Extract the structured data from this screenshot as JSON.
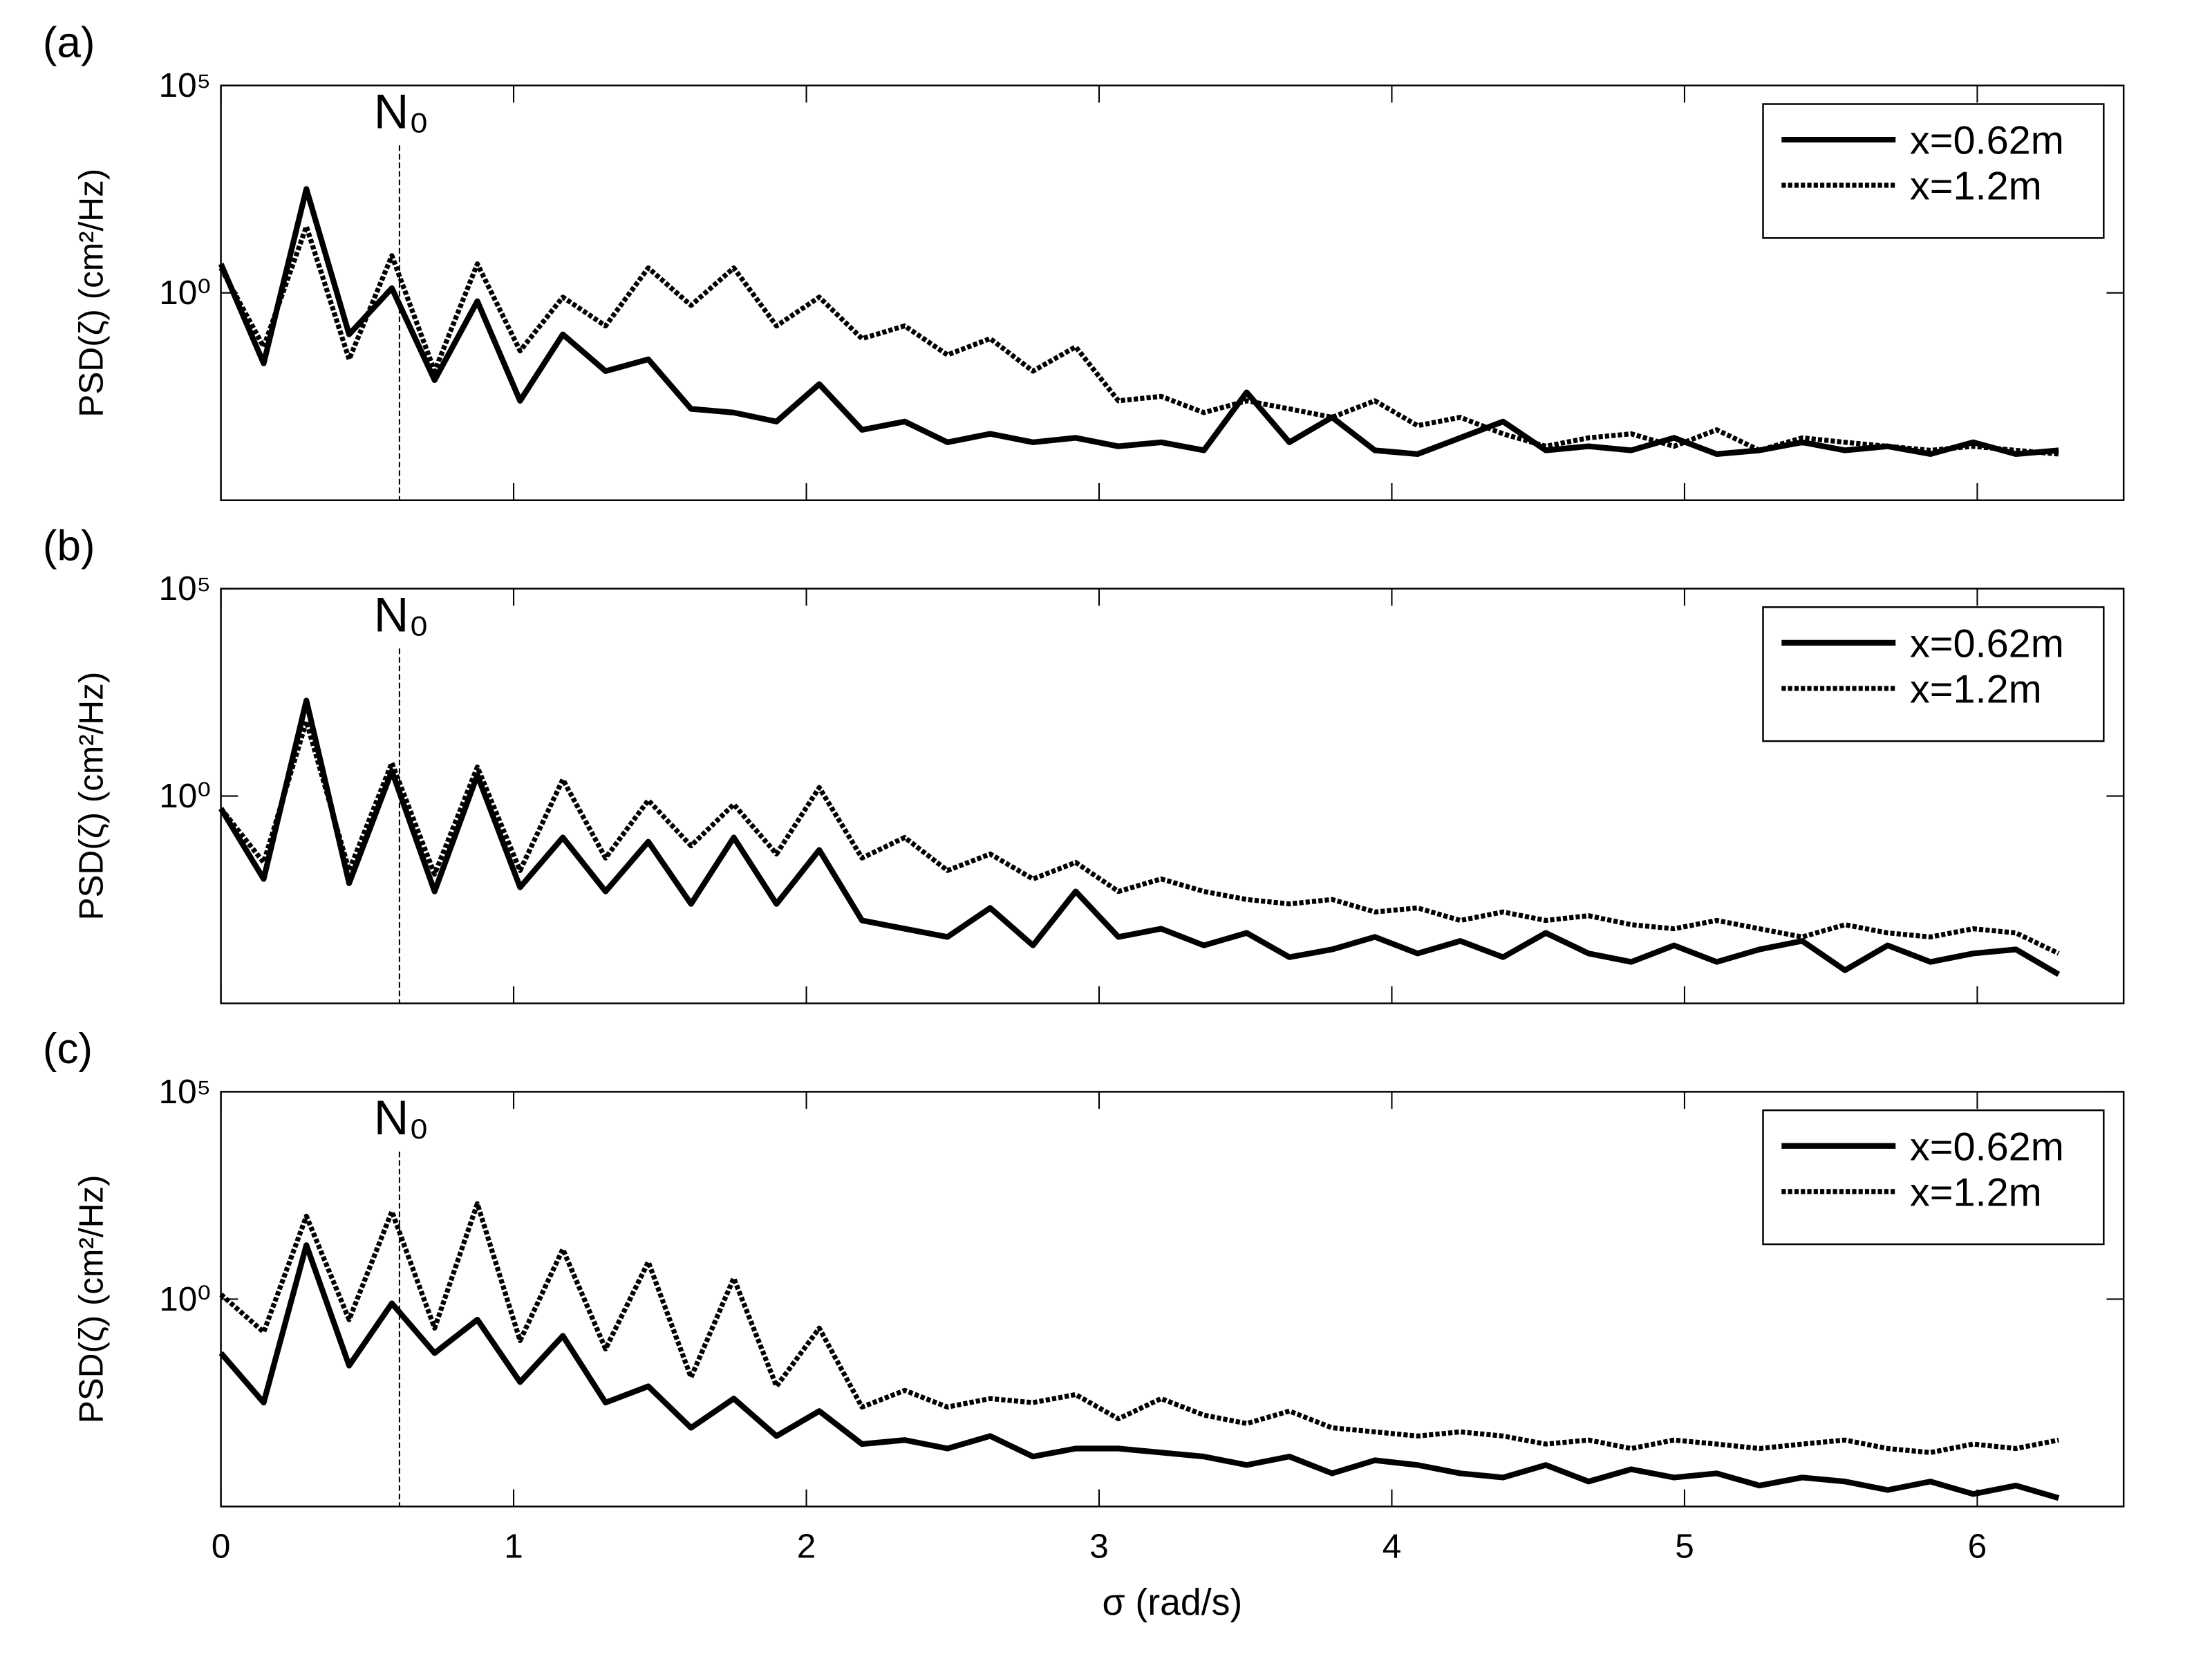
{
  "chart_data": [
    {
      "type": "line",
      "title": "(a)",
      "y_label": "PSD(ζ) (cm²/Hz)",
      "yscale": "log",
      "ylim": [
        1e-05,
        100000
      ],
      "yticks": [
        {
          "value": 1,
          "label": "10⁰"
        },
        {
          "value": 100000,
          "label": "10⁵"
        }
      ],
      "xlim": [
        0,
        6.5
      ],
      "annotation": {
        "text": "N₀",
        "x": 0.61
      },
      "legend": "upper right",
      "x": [
        0,
        0.146,
        0.292,
        0.438,
        0.584,
        0.73,
        0.876,
        1.022,
        1.168,
        1.314,
        1.46,
        1.606,
        1.752,
        1.898,
        2.044,
        2.19,
        2.336,
        2.482,
        2.628,
        2.774,
        2.92,
        3.066,
        3.212,
        3.358,
        3.504,
        3.65,
        3.796,
        3.942,
        4.088,
        4.234,
        4.38,
        4.526,
        4.672,
        4.818,
        4.964,
        5.11,
        5.256,
        5.402,
        5.548,
        5.694,
        5.84,
        5.986,
        6.132,
        6.278
      ],
      "series": [
        {
          "name": "x=0.62m",
          "color": "#000000",
          "line_style": "solid",
          "values": [
            5,
            0.02,
            320,
            0.1,
            1.3,
            0.0079,
            0.63,
            0.0025,
            0.1,
            0.013,
            0.025,
            0.0016,
            0.0013,
            0.00079,
            0.0063,
            0.0005,
            0.00079,
            0.00025,
            0.0004,
            0.00025,
            0.00032,
            0.0002,
            0.00025,
            0.00016,
            0.004,
            0.00025,
            0.001,
            0.00016,
            0.00013,
            0.00032,
            0.00079,
            0.00016,
            0.0002,
            0.00016,
            0.00032,
            0.00013,
            0.00016,
            0.00025,
            0.00016,
            0.0002,
            0.00013,
            0.00025,
            0.00013,
            0.00016
          ]
        },
        {
          "name": "x=1.2m",
          "color": "#000000",
          "line_style": "dotted",
          "values": [
            4,
            0.05,
            40,
            0.025,
            7.9,
            0.013,
            5,
            0.04,
            0.79,
            0.16,
            4,
            0.5,
            4,
            0.16,
            0.79,
            0.079,
            0.16,
            0.032,
            0.079,
            0.013,
            0.05,
            0.0025,
            0.0032,
            0.0013,
            0.0025,
            0.0016,
            0.001,
            0.0025,
            0.00063,
            0.001,
            0.0004,
            0.0002,
            0.00032,
            0.0004,
            0.0002,
            0.0005,
            0.00016,
            0.00032,
            0.00025,
            0.0002,
            0.00016,
            0.0002,
            0.00016,
            0.00013
          ]
        }
      ]
    },
    {
      "type": "line",
      "title": "(b)",
      "y_label": "PSD(ζ) (cm²/Hz)",
      "yscale": "log",
      "ylim": [
        1e-05,
        100000
      ],
      "yticks": [
        {
          "value": 1,
          "label": "10⁰"
        },
        {
          "value": 100000,
          "label": "10⁵"
        }
      ],
      "xlim": [
        0,
        6.5
      ],
      "annotation": {
        "text": "N₀",
        "x": 0.61
      },
      "legend": "upper right",
      "x": [
        0,
        0.146,
        0.292,
        0.438,
        0.584,
        0.73,
        0.876,
        1.022,
        1.168,
        1.314,
        1.46,
        1.606,
        1.752,
        1.898,
        2.044,
        2.19,
        2.336,
        2.482,
        2.628,
        2.774,
        2.92,
        3.066,
        3.212,
        3.358,
        3.504,
        3.65,
        3.796,
        3.942,
        4.088,
        4.234,
        4.38,
        4.526,
        4.672,
        4.818,
        4.964,
        5.11,
        5.256,
        5.402,
        5.548,
        5.694,
        5.84,
        5.986,
        6.132,
        6.278
      ],
      "series": [
        {
          "name": "x=0.62m",
          "color": "#000000",
          "line_style": "solid",
          "values": [
            0.5,
            0.01,
            200,
            0.0079,
            4,
            0.005,
            3.2,
            0.0063,
            0.1,
            0.005,
            0.079,
            0.0025,
            0.1,
            0.0025,
            0.05,
            0.001,
            0.00063,
            0.0004,
            0.002,
            0.00025,
            0.005,
            0.0004,
            0.00063,
            0.00025,
            0.0005,
            0.00013,
            0.0002,
            0.0004,
            0.00016,
            0.00032,
            0.00013,
            0.0005,
            0.00016,
            0.0001,
            0.00025,
            0.0001,
            0.0002,
            0.00032,
            6.3e-05,
            0.00025,
            0.0001,
            0.00016,
            0.0002,
            5e-05
          ]
        },
        {
          "name": "x=1.2m",
          "color": "#000000",
          "line_style": "dotted",
          "values": [
            0.5,
            0.025,
            63,
            0.016,
            6.3,
            0.013,
            5,
            0.016,
            2.5,
            0.032,
            0.79,
            0.063,
            0.63,
            0.04,
            1.6,
            0.032,
            0.1,
            0.016,
            0.04,
            0.01,
            0.025,
            0.005,
            0.01,
            0.005,
            0.0032,
            0.0025,
            0.0032,
            0.0016,
            0.002,
            0.001,
            0.0016,
            0.001,
            0.0013,
            0.00079,
            0.00063,
            0.001,
            0.00063,
            0.0004,
            0.00079,
            0.0005,
            0.0004,
            0.00063,
            0.0005,
            0.00016
          ]
        }
      ]
    },
    {
      "type": "line",
      "title": "(c)",
      "y_label": "PSD(ζ) (cm²/Hz)",
      "x_label": "σ (rad/s)",
      "yscale": "log",
      "ylim": [
        1e-05,
        100000
      ],
      "yticks": [
        {
          "value": 1,
          "label": "10⁰"
        },
        {
          "value": 100000,
          "label": "10⁵"
        }
      ],
      "xlim": [
        0,
        6.5
      ],
      "xticks": [
        0,
        1,
        2,
        3,
        4,
        5,
        6
      ],
      "annotation": {
        "text": "N₀",
        "x": 0.61
      },
      "legend": "upper right",
      "x": [
        0,
        0.146,
        0.292,
        0.438,
        0.584,
        0.73,
        0.876,
        1.022,
        1.168,
        1.314,
        1.46,
        1.606,
        1.752,
        1.898,
        2.044,
        2.19,
        2.336,
        2.482,
        2.628,
        2.774,
        2.92,
        3.066,
        3.212,
        3.358,
        3.504,
        3.65,
        3.796,
        3.942,
        4.088,
        4.234,
        4.38,
        4.526,
        4.672,
        4.818,
        4.964,
        5.11,
        5.256,
        5.402,
        5.548,
        5.694,
        5.84,
        5.986,
        6.132,
        6.278
      ],
      "series": [
        {
          "name": "x=0.62m",
          "color": "#000000",
          "line_style": "solid",
          "values": [
            0.05,
            0.0032,
            20,
            0.025,
            0.79,
            0.05,
            0.32,
            0.01,
            0.13,
            0.0032,
            0.0079,
            0.00079,
            0.004,
            0.0005,
            0.002,
            0.00032,
            0.0004,
            0.00025,
            0.0005,
            0.00016,
            0.00025,
            0.00025,
            0.0002,
            0.00016,
            0.0001,
            0.00016,
            6.3e-05,
            0.00013,
            0.0001,
            6.3e-05,
            5e-05,
            0.0001,
            4e-05,
            7.9e-05,
            5e-05,
            6.3e-05,
            3.2e-05,
            5e-05,
            4e-05,
            2.5e-05,
            4e-05,
            2e-05,
            3.2e-05,
            1.6e-05
          ]
        },
        {
          "name": "x=1.2m",
          "color": "#000000",
          "line_style": "dotted",
          "values": [
            1.3,
            0.16,
            100,
            0.32,
            130,
            0.2,
            200,
            0.1,
            16,
            0.063,
            7.9,
            0.013,
            3.2,
            0.0079,
            0.2,
            0.0025,
            0.0063,
            0.0025,
            0.004,
            0.0032,
            0.005,
            0.0013,
            0.004,
            0.0016,
            0.001,
            0.002,
            0.00079,
            0.00063,
            0.0005,
            0.00063,
            0.0005,
            0.00032,
            0.0004,
            0.00025,
            0.0004,
            0.00032,
            0.00025,
            0.00032,
            0.0004,
            0.00025,
            0.0002,
            0.00032,
            0.00025,
            0.0004
          ]
        }
      ]
    }
  ]
}
